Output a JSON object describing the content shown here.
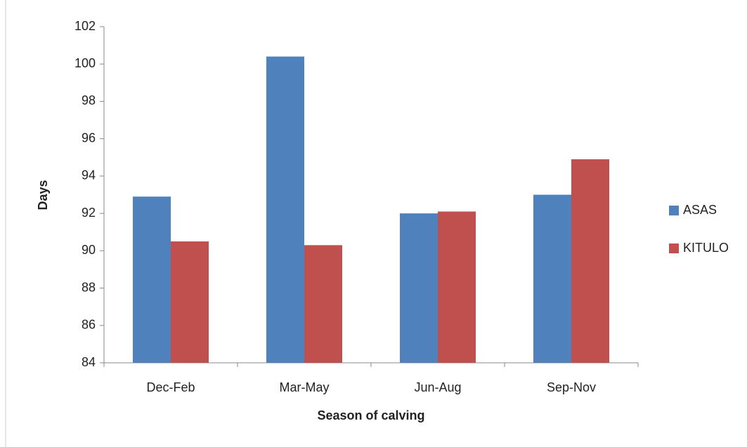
{
  "chart_data": {
    "type": "bar",
    "categories": [
      "Dec-Feb",
      "Mar-May",
      "Jun-Aug",
      "Sep-Nov"
    ],
    "series": [
      {
        "name": "ASAS",
        "color": "#4f81bd",
        "values": [
          92.9,
          100.4,
          92.0,
          93.0
        ]
      },
      {
        "name": "KITULO",
        "color": "#c0504d",
        "values": [
          90.5,
          90.3,
          92.1,
          94.9
        ]
      }
    ],
    "xlabel": "Season of calving",
    "ylabel": "Days",
    "ylim": [
      84,
      102
    ],
    "yticks": [
      84,
      86,
      88,
      90,
      92,
      94,
      96,
      98,
      100,
      102
    ],
    "grid": false,
    "legend": "right"
  }
}
